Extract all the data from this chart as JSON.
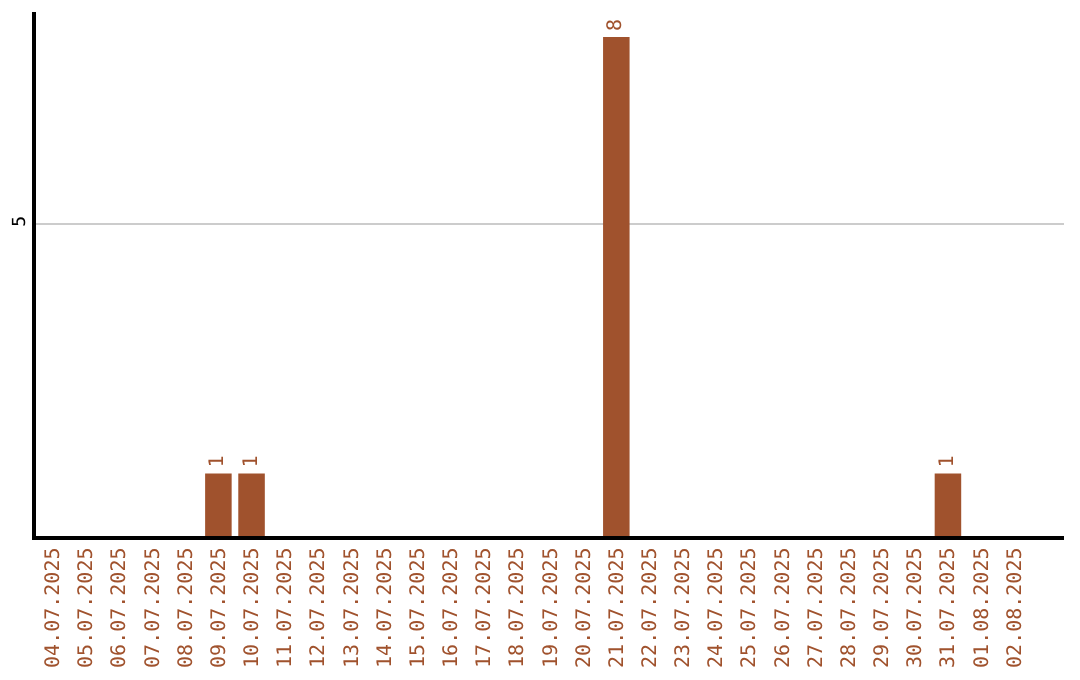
{
  "chart_data": {
    "type": "bar",
    "categories": [
      "04.07.2025",
      "05.07.2025",
      "06.07.2025",
      "07.07.2025",
      "08.07.2025",
      "09.07.2025",
      "10.07.2025",
      "11.07.2025",
      "12.07.2025",
      "13.07.2025",
      "14.07.2025",
      "15.07.2025",
      "16.07.2025",
      "17.07.2025",
      "18.07.2025",
      "19.07.2025",
      "20.07.2025",
      "21.07.2025",
      "22.07.2025",
      "23.07.2025",
      "24.07.2025",
      "25.07.2025",
      "26.07.2025",
      "27.07.2025",
      "28.07.2025",
      "29.07.2025",
      "30.07.2025",
      "31.07.2025",
      "01.08.2025",
      "02.08.2025"
    ],
    "values": [
      0,
      0,
      0,
      0,
      0,
      1,
      1,
      0,
      0,
      0,
      0,
      0,
      0,
      0,
      0,
      0,
      0,
      8,
      0,
      0,
      0,
      0,
      0,
      0,
      0,
      0,
      0,
      1,
      0,
      0
    ],
    "value_labels": [
      null,
      null,
      null,
      null,
      null,
      "1",
      "1",
      null,
      null,
      null,
      null,
      null,
      null,
      null,
      null,
      null,
      null,
      "8",
      null,
      null,
      null,
      null,
      null,
      null,
      null,
      null,
      null,
      "1",
      null,
      null
    ],
    "color": "#a0522d",
    "ylim": [
      0,
      8.4
    ],
    "yticks": [
      5
    ],
    "grid": "y"
  }
}
